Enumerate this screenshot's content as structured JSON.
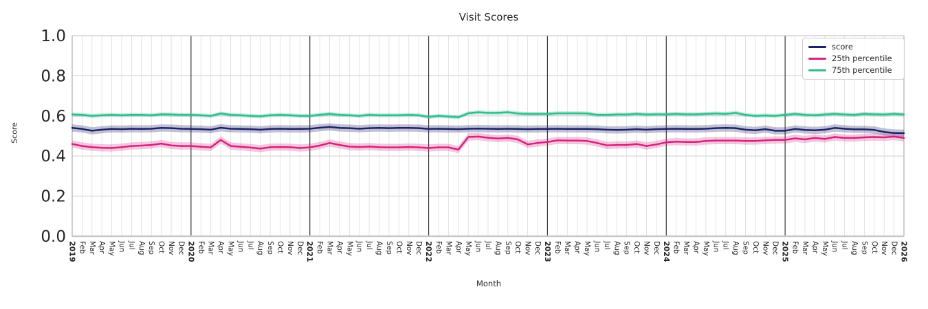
{
  "figure": {
    "background": "#ffffff",
    "text_color": "#262626",
    "grid_color": "#dcdcdc",
    "hgrid_color": "#d0d0d0",
    "year_line_color": "#3a3a3a",
    "spine_color": "#c8c8c8"
  },
  "chart_data": {
    "type": "line",
    "title": "Visit Scores",
    "xlabel": "Month",
    "ylabel": "Score",
    "ylim": [
      0.0,
      1.0
    ],
    "yticks": [
      0.0,
      0.2,
      0.4,
      0.6,
      0.8,
      1.0
    ],
    "ytick_labels": [
      "0.0",
      "0.2",
      "0.4",
      "0.6",
      "0.8",
      "1.0"
    ],
    "grid": true,
    "legend": {
      "position": "upper right",
      "entries": [
        "score",
        "25th percentile",
        "75th percentile"
      ]
    },
    "x_tick_labels": [
      "2019",
      "Feb",
      "Mar",
      "Apr",
      "May",
      "Jun",
      "Jul",
      "Aug",
      "Sep",
      "Oct",
      "Nov",
      "Dec",
      "2020",
      "Feb",
      "Mar",
      "Apr",
      "May",
      "Jun",
      "Jul",
      "Aug",
      "Sep",
      "Oct",
      "Nov",
      "Dec",
      "2021",
      "Feb",
      "Mar",
      "Apr",
      "May",
      "Jun",
      "Jul",
      "Aug",
      "Sep",
      "Oct",
      "Nov",
      "Dec",
      "2022",
      "Feb",
      "Mar",
      "Apr",
      "May",
      "Jun",
      "Jul",
      "Aug",
      "Sep",
      "Oct",
      "Nov",
      "Dec",
      "2023",
      "Feb",
      "Mar",
      "Apr",
      "May",
      "Jun",
      "Jul",
      "Aug",
      "Sep",
      "Oct",
      "Nov",
      "Dec",
      "2024",
      "Feb",
      "Mar",
      "Apr",
      "May",
      "Jun",
      "Jul",
      "Aug",
      "Sep",
      "Oct",
      "Nov",
      "Dec",
      "2025",
      "Feb",
      "Mar",
      "Apr",
      "May",
      "Jun",
      "Jul",
      "Aug",
      "Sep",
      "Oct",
      "Nov",
      "Dec",
      "2026"
    ],
    "year_tick_indices": [
      0,
      12,
      24,
      36,
      48,
      60,
      72,
      84
    ],
    "series": [
      {
        "name": "score",
        "color": "#1e2167",
        "band": 0.018,
        "band_opacity": 0.28,
        "values": [
          0.54,
          0.535,
          0.526,
          0.531,
          0.535,
          0.534,
          0.536,
          0.535,
          0.536,
          0.54,
          0.539,
          0.536,
          0.535,
          0.534,
          0.531,
          0.541,
          0.536,
          0.535,
          0.534,
          0.531,
          0.535,
          0.536,
          0.535,
          0.535,
          0.536,
          0.541,
          0.545,
          0.54,
          0.539,
          0.536,
          0.539,
          0.54,
          0.539,
          0.54,
          0.54,
          0.539,
          0.535,
          0.536,
          0.535,
          0.534,
          0.536,
          0.537,
          0.536,
          0.535,
          0.536,
          0.535,
          0.534,
          0.535,
          0.535,
          0.536,
          0.535,
          0.535,
          0.535,
          0.534,
          0.531,
          0.53,
          0.531,
          0.534,
          0.531,
          0.534,
          0.535,
          0.536,
          0.535,
          0.535,
          0.536,
          0.539,
          0.54,
          0.539,
          0.531,
          0.528,
          0.534,
          0.526,
          0.526,
          0.535,
          0.53,
          0.528,
          0.531,
          0.54,
          0.536,
          0.533,
          0.533,
          0.53,
          0.52,
          0.515,
          0.514
        ]
      },
      {
        "name": "25th percentile",
        "color": "#d6217e",
        "band": 0.018,
        "band_opacity": 0.25,
        "values": [
          0.46,
          0.45,
          0.444,
          0.441,
          0.44,
          0.444,
          0.45,
          0.452,
          0.455,
          0.462,
          0.453,
          0.45,
          0.45,
          0.446,
          0.443,
          0.48,
          0.45,
          0.446,
          0.442,
          0.437,
          0.444,
          0.445,
          0.444,
          0.44,
          0.443,
          0.452,
          0.465,
          0.455,
          0.447,
          0.445,
          0.447,
          0.444,
          0.443,
          0.443,
          0.445,
          0.443,
          0.44,
          0.443,
          0.443,
          0.432,
          0.495,
          0.497,
          0.491,
          0.487,
          0.49,
          0.483,
          0.458,
          0.465,
          0.47,
          0.478,
          0.477,
          0.477,
          0.475,
          0.465,
          0.453,
          0.455,
          0.455,
          0.46,
          0.45,
          0.458,
          0.468,
          0.472,
          0.47,
          0.47,
          0.475,
          0.477,
          0.477,
          0.477,
          0.475,
          0.475,
          0.478,
          0.48,
          0.48,
          0.488,
          0.483,
          0.49,
          0.485,
          0.495,
          0.49,
          0.49,
          0.493,
          0.495,
          0.493,
          0.497,
          0.49
        ]
      },
      {
        "name": "75th percentile",
        "color": "#2ebd8b",
        "band": 0.01,
        "band_opacity": 0.3,
        "values": [
          0.607,
          0.605,
          0.6,
          0.603,
          0.605,
          0.603,
          0.605,
          0.605,
          0.603,
          0.608,
          0.607,
          0.605,
          0.605,
          0.603,
          0.6,
          0.612,
          0.605,
          0.603,
          0.6,
          0.598,
          0.603,
          0.605,
          0.603,
          0.6,
          0.6,
          0.605,
          0.61,
          0.605,
          0.603,
          0.6,
          0.605,
          0.603,
          0.603,
          0.603,
          0.605,
          0.603,
          0.595,
          0.6,
          0.597,
          0.593,
          0.613,
          0.618,
          0.615,
          0.615,
          0.618,
          0.612,
          0.61,
          0.61,
          0.61,
          0.613,
          0.613,
          0.613,
          0.612,
          0.605,
          0.605,
          0.607,
          0.607,
          0.61,
          0.607,
          0.608,
          0.608,
          0.61,
          0.608,
          0.608,
          0.61,
          0.612,
          0.61,
          0.615,
          0.605,
          0.6,
          0.602,
          0.6,
          0.605,
          0.61,
          0.605,
          0.603,
          0.607,
          0.61,
          0.607,
          0.605,
          0.61,
          0.608,
          0.607,
          0.61,
          0.607
        ]
      }
    ]
  }
}
